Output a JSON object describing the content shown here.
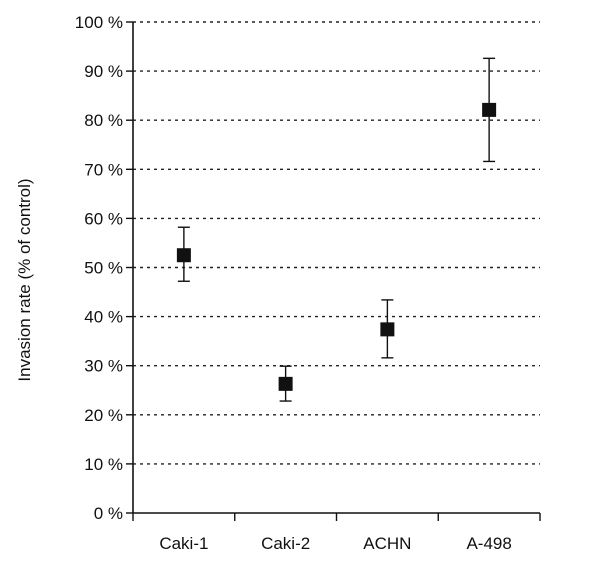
{
  "chart_data": {
    "type": "scatter",
    "title": "",
    "xlabel": "",
    "ylabel": "Invasion rate (% of control)",
    "categories": [
      "Caki-1",
      "Caki-2",
      "ACHN",
      "A-498"
    ],
    "series": [
      {
        "values": [
          52.5,
          26.3,
          37.4,
          82.1
        ],
        "error_low": [
          47.2,
          22.8,
          31.6,
          71.6
        ],
        "error_high": [
          58.2,
          29.9,
          43.4,
          92.6
        ]
      }
    ],
    "ylim": [
      0,
      100
    ],
    "yticks": [
      0,
      10,
      20,
      30,
      40,
      50,
      60,
      70,
      80,
      90,
      100
    ],
    "ytick_labels": [
      "0 %",
      "10 %",
      "20 %",
      "30 %",
      "40 %",
      "50 %",
      "60 %",
      "70 %",
      "80 %",
      "90 %",
      "100 %"
    ],
    "grid": "horizontal dotted",
    "marker": "square",
    "colors": {
      "marker": "#111111",
      "axis": "#111111",
      "grid": "#222222"
    }
  }
}
